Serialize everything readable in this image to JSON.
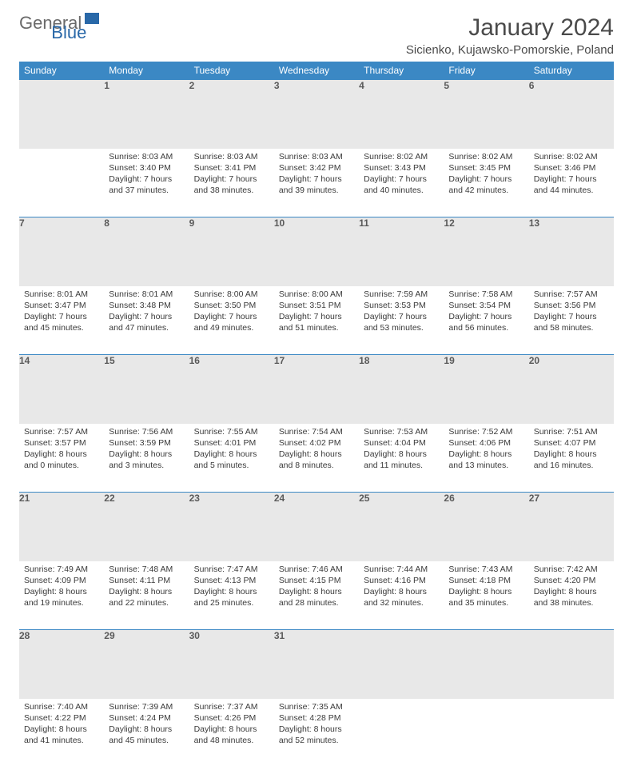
{
  "logo": {
    "word1": "General",
    "word2": "Blue"
  },
  "title": "January 2024",
  "subtitle": "Sicienko, Kujawsko-Pomorskie, Poland",
  "weekdays": [
    "Sunday",
    "Monday",
    "Tuesday",
    "Wednesday",
    "Thursday",
    "Friday",
    "Saturday"
  ],
  "colors": {
    "header_bg": "#3b88c4",
    "header_text": "#ffffff",
    "daynum_bg": "#e8e8e8",
    "border": "#3b88c4",
    "text": "#3a3a3a",
    "title_text": "#4a4a4a",
    "logo_gray": "#6a6a6a",
    "logo_blue": "#2968a8"
  },
  "weeks": [
    {
      "nums": [
        "",
        "1",
        "2",
        "3",
        "4",
        "5",
        "6"
      ],
      "cells": [
        null,
        {
          "sunrise": "Sunrise: 8:03 AM",
          "sunset": "Sunset: 3:40 PM",
          "daylight1": "Daylight: 7 hours",
          "daylight2": "and 37 minutes."
        },
        {
          "sunrise": "Sunrise: 8:03 AM",
          "sunset": "Sunset: 3:41 PM",
          "daylight1": "Daylight: 7 hours",
          "daylight2": "and 38 minutes."
        },
        {
          "sunrise": "Sunrise: 8:03 AM",
          "sunset": "Sunset: 3:42 PM",
          "daylight1": "Daylight: 7 hours",
          "daylight2": "and 39 minutes."
        },
        {
          "sunrise": "Sunrise: 8:02 AM",
          "sunset": "Sunset: 3:43 PM",
          "daylight1": "Daylight: 7 hours",
          "daylight2": "and 40 minutes."
        },
        {
          "sunrise": "Sunrise: 8:02 AM",
          "sunset": "Sunset: 3:45 PM",
          "daylight1": "Daylight: 7 hours",
          "daylight2": "and 42 minutes."
        },
        {
          "sunrise": "Sunrise: 8:02 AM",
          "sunset": "Sunset: 3:46 PM",
          "daylight1": "Daylight: 7 hours",
          "daylight2": "and 44 minutes."
        }
      ]
    },
    {
      "nums": [
        "7",
        "8",
        "9",
        "10",
        "11",
        "12",
        "13"
      ],
      "cells": [
        {
          "sunrise": "Sunrise: 8:01 AM",
          "sunset": "Sunset: 3:47 PM",
          "daylight1": "Daylight: 7 hours",
          "daylight2": "and 45 minutes."
        },
        {
          "sunrise": "Sunrise: 8:01 AM",
          "sunset": "Sunset: 3:48 PM",
          "daylight1": "Daylight: 7 hours",
          "daylight2": "and 47 minutes."
        },
        {
          "sunrise": "Sunrise: 8:00 AM",
          "sunset": "Sunset: 3:50 PM",
          "daylight1": "Daylight: 7 hours",
          "daylight2": "and 49 minutes."
        },
        {
          "sunrise": "Sunrise: 8:00 AM",
          "sunset": "Sunset: 3:51 PM",
          "daylight1": "Daylight: 7 hours",
          "daylight2": "and 51 minutes."
        },
        {
          "sunrise": "Sunrise: 7:59 AM",
          "sunset": "Sunset: 3:53 PM",
          "daylight1": "Daylight: 7 hours",
          "daylight2": "and 53 minutes."
        },
        {
          "sunrise": "Sunrise: 7:58 AM",
          "sunset": "Sunset: 3:54 PM",
          "daylight1": "Daylight: 7 hours",
          "daylight2": "and 56 minutes."
        },
        {
          "sunrise": "Sunrise: 7:57 AM",
          "sunset": "Sunset: 3:56 PM",
          "daylight1": "Daylight: 7 hours",
          "daylight2": "and 58 minutes."
        }
      ]
    },
    {
      "nums": [
        "14",
        "15",
        "16",
        "17",
        "18",
        "19",
        "20"
      ],
      "cells": [
        {
          "sunrise": "Sunrise: 7:57 AM",
          "sunset": "Sunset: 3:57 PM",
          "daylight1": "Daylight: 8 hours",
          "daylight2": "and 0 minutes."
        },
        {
          "sunrise": "Sunrise: 7:56 AM",
          "sunset": "Sunset: 3:59 PM",
          "daylight1": "Daylight: 8 hours",
          "daylight2": "and 3 minutes."
        },
        {
          "sunrise": "Sunrise: 7:55 AM",
          "sunset": "Sunset: 4:01 PM",
          "daylight1": "Daylight: 8 hours",
          "daylight2": "and 5 minutes."
        },
        {
          "sunrise": "Sunrise: 7:54 AM",
          "sunset": "Sunset: 4:02 PM",
          "daylight1": "Daylight: 8 hours",
          "daylight2": "and 8 minutes."
        },
        {
          "sunrise": "Sunrise: 7:53 AM",
          "sunset": "Sunset: 4:04 PM",
          "daylight1": "Daylight: 8 hours",
          "daylight2": "and 11 minutes."
        },
        {
          "sunrise": "Sunrise: 7:52 AM",
          "sunset": "Sunset: 4:06 PM",
          "daylight1": "Daylight: 8 hours",
          "daylight2": "and 13 minutes."
        },
        {
          "sunrise": "Sunrise: 7:51 AM",
          "sunset": "Sunset: 4:07 PM",
          "daylight1": "Daylight: 8 hours",
          "daylight2": "and 16 minutes."
        }
      ]
    },
    {
      "nums": [
        "21",
        "22",
        "23",
        "24",
        "25",
        "26",
        "27"
      ],
      "cells": [
        {
          "sunrise": "Sunrise: 7:49 AM",
          "sunset": "Sunset: 4:09 PM",
          "daylight1": "Daylight: 8 hours",
          "daylight2": "and 19 minutes."
        },
        {
          "sunrise": "Sunrise: 7:48 AM",
          "sunset": "Sunset: 4:11 PM",
          "daylight1": "Daylight: 8 hours",
          "daylight2": "and 22 minutes."
        },
        {
          "sunrise": "Sunrise: 7:47 AM",
          "sunset": "Sunset: 4:13 PM",
          "daylight1": "Daylight: 8 hours",
          "daylight2": "and 25 minutes."
        },
        {
          "sunrise": "Sunrise: 7:46 AM",
          "sunset": "Sunset: 4:15 PM",
          "daylight1": "Daylight: 8 hours",
          "daylight2": "and 28 minutes."
        },
        {
          "sunrise": "Sunrise: 7:44 AM",
          "sunset": "Sunset: 4:16 PM",
          "daylight1": "Daylight: 8 hours",
          "daylight2": "and 32 minutes."
        },
        {
          "sunrise": "Sunrise: 7:43 AM",
          "sunset": "Sunset: 4:18 PM",
          "daylight1": "Daylight: 8 hours",
          "daylight2": "and 35 minutes."
        },
        {
          "sunrise": "Sunrise: 7:42 AM",
          "sunset": "Sunset: 4:20 PM",
          "daylight1": "Daylight: 8 hours",
          "daylight2": "and 38 minutes."
        }
      ]
    },
    {
      "nums": [
        "28",
        "29",
        "30",
        "31",
        "",
        "",
        ""
      ],
      "cells": [
        {
          "sunrise": "Sunrise: 7:40 AM",
          "sunset": "Sunset: 4:22 PM",
          "daylight1": "Daylight: 8 hours",
          "daylight2": "and 41 minutes."
        },
        {
          "sunrise": "Sunrise: 7:39 AM",
          "sunset": "Sunset: 4:24 PM",
          "daylight1": "Daylight: 8 hours",
          "daylight2": "and 45 minutes."
        },
        {
          "sunrise": "Sunrise: 7:37 AM",
          "sunset": "Sunset: 4:26 PM",
          "daylight1": "Daylight: 8 hours",
          "daylight2": "and 48 minutes."
        },
        {
          "sunrise": "Sunrise: 7:35 AM",
          "sunset": "Sunset: 4:28 PM",
          "daylight1": "Daylight: 8 hours",
          "daylight2": "and 52 minutes."
        },
        null,
        null,
        null
      ]
    }
  ]
}
